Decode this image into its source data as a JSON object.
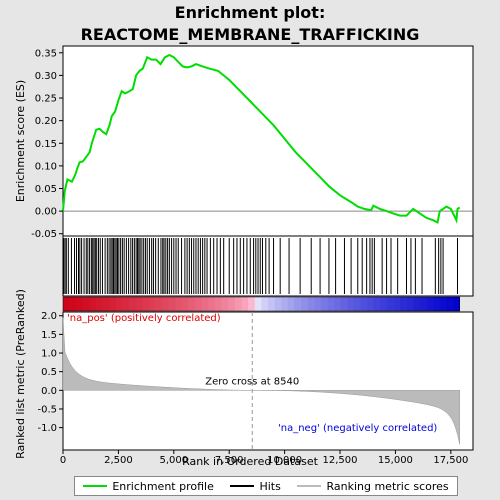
{
  "chart_data": {
    "type": "line",
    "title_line1": "Enrichment plot:",
    "title_line2": "REACTOME_MEMBRANE_TRAFFICKING",
    "xlabel": "Rank in Ordered Dataset",
    "top_ylabel": "Enrichment score (ES)",
    "bottom_ylabel": "Ranked list metric (PreRanked)",
    "xlim": [
      0,
      18500
    ],
    "top_ylim": [
      -0.055,
      0.365
    ],
    "bottom_ylim": [
      -1.6,
      2.1
    ],
    "x_ticks": [
      0,
      2500,
      5000,
      7500,
      10000,
      12500,
      15000,
      17500
    ],
    "x_tick_labels": [
      "0",
      "2,500",
      "5,000",
      "7,500",
      "10,000",
      "12,500",
      "15,000",
      "17,500"
    ],
    "top_y_ticks": [
      -0.05,
      0.0,
      0.05,
      0.1,
      0.15,
      0.2,
      0.25,
      0.3,
      0.35
    ],
    "top_y_tick_labels": [
      "-0.05",
      "0.00",
      "0.05",
      "0.10",
      "0.15",
      "0.20",
      "0.25",
      "0.30",
      "0.35"
    ],
    "bottom_y_ticks": [
      -1.0,
      -0.5,
      0.0,
      0.5,
      1.0,
      1.5,
      2.0
    ],
    "bottom_y_tick_labels": [
      "-1.0",
      "-0.5",
      "0.0",
      "0.5",
      "1.0",
      "1.5",
      "2.0"
    ],
    "zero_cross_label": "Zero cross at 8540",
    "zero_cross": 8540,
    "pos_label": "'na_pos' (positively correlated)",
    "neg_label": "'na_neg' (negatively correlated)",
    "n_genes": 17900,
    "legend": [
      "Enrichment profile",
      "Hits",
      "Ranking metric scores"
    ],
    "colors": {
      "profile": "#00dd00",
      "hits": "#000000",
      "metric": "#bbbbbb",
      "pos_text": "#dd0000",
      "neg_text": "#0000dd"
    },
    "es_profile": {
      "x": [
        0,
        80,
        200,
        400,
        550,
        650,
        750,
        900,
        1050,
        1200,
        1300,
        1400,
        1500,
        1650,
        1800,
        1950,
        2100,
        2200,
        2350,
        2500,
        2650,
        2800,
        3000,
        3150,
        3300,
        3450,
        3600,
        3800,
        4000,
        4200,
        4400,
        4600,
        4800,
        5000,
        5200,
        5400,
        5600,
        5800,
        6000,
        6300,
        6600,
        7000,
        7500,
        8000,
        8500,
        9000,
        9500,
        10000,
        10500,
        11000,
        11500,
        12000,
        12500,
        13000,
        13300,
        13600,
        13900,
        14000,
        14300,
        14600,
        14900,
        15200,
        15500,
        15800,
        16100,
        16400,
        16700,
        16900,
        17000,
        17150,
        17300,
        17500,
        17600,
        17750,
        17800,
        17900
      ],
      "y": [
        0.0,
        0.045,
        0.07,
        0.065,
        0.08,
        0.095,
        0.108,
        0.11,
        0.12,
        0.13,
        0.15,
        0.165,
        0.18,
        0.182,
        0.175,
        0.17,
        0.19,
        0.21,
        0.22,
        0.245,
        0.265,
        0.26,
        0.265,
        0.27,
        0.3,
        0.31,
        0.315,
        0.34,
        0.335,
        0.335,
        0.325,
        0.34,
        0.345,
        0.34,
        0.33,
        0.32,
        0.318,
        0.32,
        0.325,
        0.32,
        0.315,
        0.31,
        0.29,
        0.265,
        0.24,
        0.215,
        0.19,
        0.16,
        0.13,
        0.105,
        0.08,
        0.055,
        0.035,
        0.02,
        0.01,
        0.005,
        0.002,
        0.012,
        0.005,
        0.0,
        -0.005,
        -0.01,
        -0.01,
        0.005,
        -0.005,
        -0.015,
        -0.02,
        -0.025,
        0.0,
        0.005,
        0.01,
        0.005,
        -0.005,
        -0.02,
        0.005,
        0.008
      ]
    },
    "hits": [
      30,
      90,
      150,
      240,
      380,
      520,
      610,
      700,
      760,
      840,
      950,
      1050,
      1120,
      1200,
      1280,
      1340,
      1400,
      1460,
      1520,
      1600,
      1680,
      1780,
      1900,
      2000,
      2080,
      2160,
      2220,
      2280,
      2340,
      2400,
      2460,
      2520,
      2600,
      2680,
      2760,
      2860,
      2960,
      3060,
      3140,
      3220,
      3300,
      3360,
      3420,
      3480,
      3560,
      3640,
      3720,
      3800,
      3900,
      4000,
      4080,
      4180,
      4300,
      4420,
      4500,
      4560,
      4640,
      4720,
      4800,
      4900,
      5000,
      5100,
      5200,
      5350,
      5500,
      5600,
      5700,
      5800,
      5900,
      6000,
      6100,
      6200,
      6300,
      6400,
      6500,
      6650,
      6800,
      6950,
      7100,
      7250,
      7500,
      7700,
      7850,
      8000,
      8150,
      8300,
      8450,
      8600,
      8700,
      8800,
      8900,
      9000,
      9150,
      9300,
      9500,
      9800,
      10200,
      10700,
      11200,
      11600,
      12000,
      12300,
      12700,
      13000,
      13300,
      13500,
      13700,
      13850,
      13950,
      14050,
      14400,
      14600,
      14800,
      15100,
      15500,
      15700,
      15900,
      16200,
      16800,
      16950,
      17050,
      17150,
      17800
    ]
  }
}
